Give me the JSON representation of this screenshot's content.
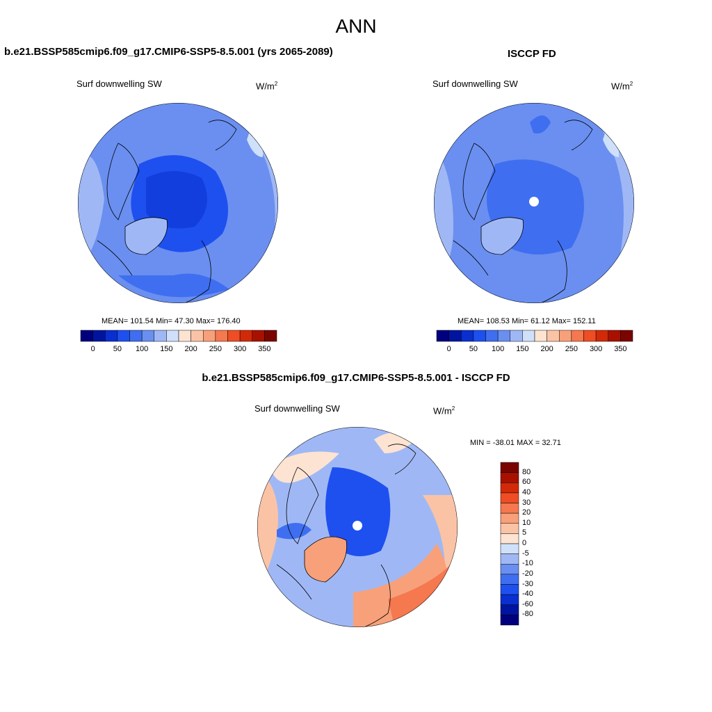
{
  "page_title": "ANN",
  "panels": [
    {
      "title": "b.e21.BSSP585cmip6.f09_g17.CMIP6-SSP5-8.5.001 (yrs 2065-2089)",
      "variable": "Surf downwelling SW",
      "units_base": "W/m",
      "units_exp": "2",
      "stats": "MEAN= 101.54  Min=  47.30  Max= 176.40",
      "colorbar_ticks": [
        "0",
        "50",
        "100",
        "150",
        "200",
        "250",
        "300",
        "350"
      ]
    },
    {
      "title": "ISCCP FD",
      "variable": "Surf downwelling SW",
      "units_base": "W/m",
      "units_exp": "2",
      "stats": "MEAN= 108.53  Min=  61.12  Max= 152.11",
      "colorbar_ticks": [
        "0",
        "50",
        "100",
        "150",
        "200",
        "250",
        "300",
        "350"
      ]
    },
    {
      "title": "b.e21.BSSP585cmip6.f09_g17.CMIP6-SSP5-8.5.001 - ISCCP FD",
      "variable": "Surf downwelling SW",
      "units_base": "W/m",
      "units_exp": "2",
      "stats": "MIN = -38.01 MAX =  32.71",
      "colorbar_ticks": [
        "80",
        "60",
        "40",
        "30",
        "20",
        "10",
        "5",
        "0",
        "-5",
        "-10",
        "-20",
        "-30",
        "-40",
        "-60",
        "-80"
      ]
    }
  ],
  "colors": {
    "abs_scale": [
      "#00007f",
      "#0014a0",
      "#0a2fd0",
      "#1e50f0",
      "#3f6ff0",
      "#6a8ff0",
      "#9fb8f5",
      "#cfe0fa",
      "#fde3d2",
      "#fbc3a5",
      "#f8a07a",
      "#f5784f",
      "#ef4d24",
      "#d22a08",
      "#a81000",
      "#7a0500"
    ],
    "diff_scale": [
      "#7a0500",
      "#a81000",
      "#d22a08",
      "#ef4d24",
      "#f5784f",
      "#f8a07a",
      "#fbc3a5",
      "#fde3d2",
      "#cfe0fa",
      "#9fb8f5",
      "#6a8ff0",
      "#3f6ff0",
      "#1e50f0",
      "#0a2fd0",
      "#0014a0",
      "#00007f"
    ]
  }
}
